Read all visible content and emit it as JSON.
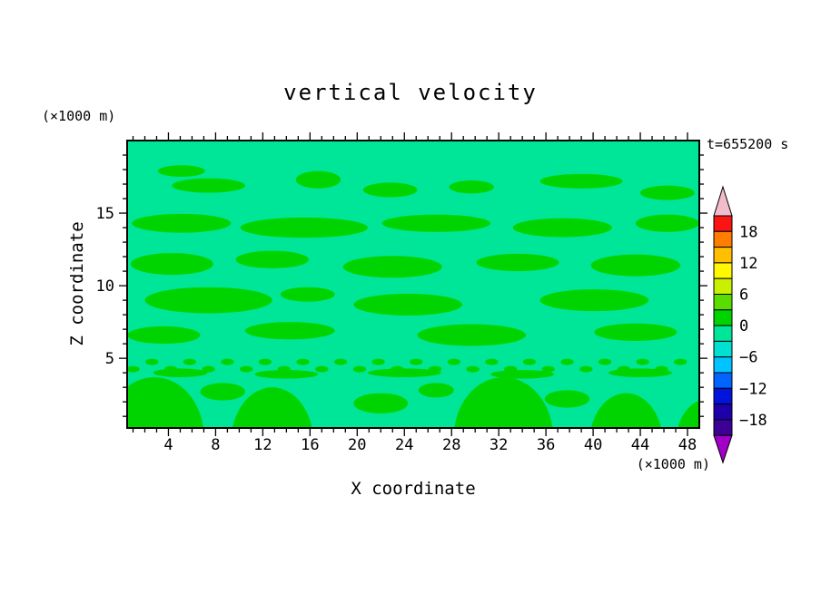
{
  "title": "vertical velocity",
  "time_label": "t=655200 s",
  "x_axis": {
    "label": "X coordinate",
    "unit_label": "(×1000 m)",
    "tick_labels": [
      4,
      8,
      12,
      16,
      20,
      24,
      28,
      32,
      36,
      40,
      44,
      48
    ]
  },
  "z_axis": {
    "label": "Z coordinate",
    "unit_label": "(×1000 m)",
    "tick_labels": [
      5,
      10,
      15
    ]
  },
  "colorbar": {
    "labels": [
      "18",
      "12",
      "6",
      "0",
      "−6",
      "−12",
      "−18"
    ],
    "label_values": [
      18,
      12,
      6,
      0,
      -6,
      -12,
      -18
    ],
    "top_arrow_color": "#f2bcca",
    "bottom_arrow_color": "#a000c8",
    "segments": [
      {
        "from": 18,
        "to": 21,
        "color": "#fa1414"
      },
      {
        "from": 15,
        "to": 18,
        "color": "#ff7d00"
      },
      {
        "from": 12,
        "to": 15,
        "color": "#ffbe00"
      },
      {
        "from": 9,
        "to": 12,
        "color": "#fff800"
      },
      {
        "from": 6,
        "to": 9,
        "color": "#c8f000"
      },
      {
        "from": 3,
        "to": 6,
        "color": "#5adc00"
      },
      {
        "from": 0,
        "to": 3,
        "color": "#00d400"
      },
      {
        "from": -3,
        "to": 0,
        "color": "#00e698"
      },
      {
        "from": -6,
        "to": -3,
        "color": "#00e1d2"
      },
      {
        "from": -9,
        "to": -6,
        "color": "#00c3ff"
      },
      {
        "from": -12,
        "to": -9,
        "color": "#0064ff"
      },
      {
        "from": -15,
        "to": -12,
        "color": "#0014dc"
      },
      {
        "from": -18,
        "to": -15,
        "color": "#1e00aa"
      },
      {
        "from": -21,
        "to": -18,
        "color": "#3c0096"
      }
    ]
  },
  "chart_data": {
    "type": "contour",
    "title": "vertical velocity",
    "xlabel": "X coordinate (×1000 m)",
    "ylabel": "Z coordinate (×1000 m)",
    "time_annotation": "t=655200 s",
    "x_range": [
      0.5,
      49
    ],
    "z_range": [
      0.2,
      20
    ],
    "x_ticks": [
      4,
      8,
      12,
      16,
      20,
      24,
      28,
      32,
      36,
      40,
      44,
      48
    ],
    "z_ticks": [
      5,
      10,
      15
    ],
    "contour_interval": 3,
    "background_band": {
      "range": [
        -3,
        0
      ],
      "color": "#00e698"
    },
    "highlight_band": {
      "range": [
        0,
        3
      ],
      "color": "#00d400"
    },
    "regions_units": "[x_center, z_center, x_radius, z_radius] in data units (×1000 m)",
    "regions": [
      [
        5.1,
        17.9,
        2.0,
        0.4
      ],
      [
        7.4,
        16.9,
        3.1,
        0.5
      ],
      [
        16.7,
        17.3,
        1.9,
        0.6
      ],
      [
        22.8,
        16.6,
        2.3,
        0.5
      ],
      [
        29.7,
        16.8,
        1.9,
        0.45
      ],
      [
        39.0,
        17.2,
        3.5,
        0.5
      ],
      [
        46.3,
        16.4,
        2.3,
        0.5
      ],
      [
        5.1,
        14.3,
        4.2,
        0.65
      ],
      [
        15.5,
        14.0,
        5.4,
        0.7
      ],
      [
        26.7,
        14.3,
        4.6,
        0.6
      ],
      [
        37.4,
        14.0,
        4.2,
        0.65
      ],
      [
        46.3,
        14.3,
        2.7,
        0.6
      ],
      [
        4.3,
        11.5,
        3.5,
        0.75
      ],
      [
        12.8,
        11.8,
        3.1,
        0.6
      ],
      [
        23.0,
        11.3,
        4.2,
        0.75
      ],
      [
        33.6,
        11.6,
        3.5,
        0.6
      ],
      [
        43.6,
        11.4,
        3.8,
        0.75
      ],
      [
        7.4,
        9.0,
        5.4,
        0.9
      ],
      [
        15.8,
        9.4,
        2.3,
        0.5
      ],
      [
        24.3,
        8.7,
        4.6,
        0.75
      ],
      [
        40.1,
        9.0,
        4.6,
        0.75
      ],
      [
        3.6,
        6.6,
        3.1,
        0.6
      ],
      [
        14.3,
        6.9,
        3.8,
        0.6
      ],
      [
        29.7,
        6.6,
        4.6,
        0.75
      ],
      [
        43.6,
        6.8,
        3.5,
        0.6
      ],
      [
        5.0,
        4.0,
        2.3,
        0.3
      ],
      [
        14.0,
        3.9,
        2.7,
        0.3
      ],
      [
        24.0,
        4.0,
        3.1,
        0.3
      ],
      [
        34.0,
        3.9,
        2.7,
        0.3
      ],
      [
        44.0,
        4.0,
        2.7,
        0.3
      ],
      [
        8.6,
        2.7,
        1.9,
        0.6
      ],
      [
        22.0,
        1.9,
        2.3,
        0.7
      ],
      [
        26.7,
        2.8,
        1.5,
        0.5
      ],
      [
        37.8,
        2.2,
        1.9,
        0.6
      ],
      [
        0.5,
        -0.9,
        2.3,
        2.7
      ],
      [
        2.8,
        -0.4,
        4.2,
        4.1
      ],
      [
        12.8,
        -0.8,
        3.5,
        3.8
      ],
      [
        32.4,
        -0.4,
        4.2,
        4.1
      ],
      [
        42.8,
        -0.8,
        3.1,
        3.4
      ],
      [
        49.7,
        -0.9,
        2.7,
        3.1
      ]
    ],
    "speckle_band": {
      "z": 4.5,
      "jitter": 0.25,
      "x_start": 1.0,
      "x_end": 48.6,
      "step": 1.6,
      "rx": 0.55,
      "rz": 0.22
    }
  }
}
